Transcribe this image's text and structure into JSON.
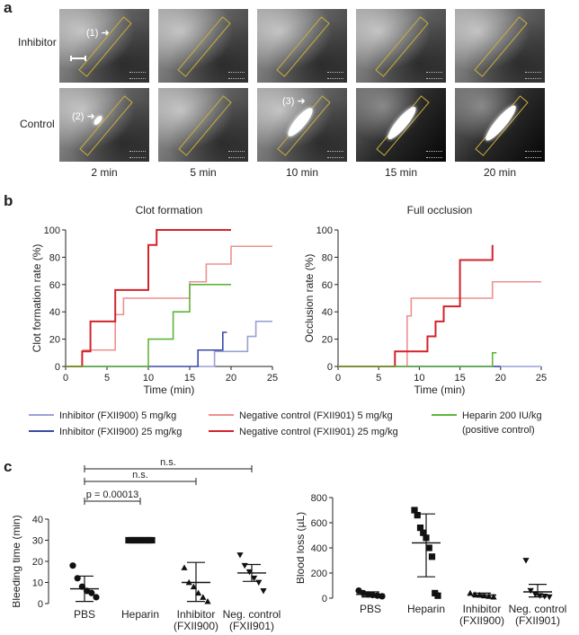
{
  "panel_a": {
    "letter": "a",
    "rows": [
      "Inhibitor",
      "Control"
    ],
    "times": [
      "2 min",
      "5 min",
      "10 min",
      "15 min",
      "20 min"
    ],
    "markers": [
      "(1)",
      "(2)",
      "(3)"
    ]
  },
  "panel_b": {
    "letter": "b"
  },
  "panel_c": {
    "letter": "c"
  },
  "colors": {
    "inhibitor_5": "#9aa0d6",
    "inhibitor_25": "#3a4aa6",
    "negctrl_5": "#ee8f8f",
    "negctrl_25": "#d3232b",
    "heparin": "#5fb43c"
  },
  "legend": [
    {
      "label": "Inhibitor (FXII900) 5 mg/kg",
      "color": "#9aa0d6"
    },
    {
      "label": "Inhibitor (FXII900) 25 mg/kg",
      "color": "#3a4aa6"
    },
    {
      "label": "Negative control (FXII901) 5 mg/kg",
      "color": "#ee8f8f"
    },
    {
      "label": "Negative control (FXII901) 25 mg/kg",
      "color": "#d3232b"
    },
    {
      "label": "Heparin 200 IU/kg (positive control)",
      "color": "#5fb43c"
    }
  ],
  "chart_data": [
    {
      "type": "line",
      "step": true,
      "title": "Clot formation",
      "xlabel": "Time (min)",
      "ylabel": "Clot formation rate (%)",
      "xlim": [
        0,
        25
      ],
      "ylim": [
        0,
        100
      ],
      "xticks": [
        0,
        5,
        10,
        15,
        20,
        25
      ],
      "yticks": [
        0,
        20,
        40,
        60,
        80,
        100
      ],
      "series": [
        {
          "name": "Inhibitor (FXII900) 5 mg/kg",
          "color": "#9aa0d6",
          "x": [
            16,
            18,
            19,
            20,
            22,
            23,
            25
          ],
          "y": [
            0,
            11,
            11,
            11,
            22,
            33,
            33
          ]
        },
        {
          "name": "Inhibitor (FXII900) 25 mg/kg",
          "color": "#3a4aa6",
          "x": [
            0,
            15,
            16,
            18,
            19,
            19.5
          ],
          "y": [
            0,
            0,
            12,
            12,
            25,
            25
          ]
        },
        {
          "name": "Negative control (FXII901) 5 mg/kg",
          "color": "#ee8f8f",
          "x": [
            2,
            3,
            6,
            7,
            14,
            15,
            17,
            20,
            25
          ],
          "y": [
            12,
            12,
            38,
            50,
            50,
            62,
            75,
            88,
            88
          ]
        },
        {
          "name": "Negative control (FXII901) 25 mg/kg",
          "color": "#d3232b",
          "x": [
            0,
            2,
            3,
            6,
            10,
            11,
            20
          ],
          "y": [
            0,
            11,
            33,
            56,
            89,
            100,
            100
          ]
        },
        {
          "name": "Heparin 200 IU/kg (positive control)",
          "color": "#5fb43c",
          "x": [
            0,
            10,
            13,
            15,
            20
          ],
          "y": [
            0,
            20,
            40,
            60,
            60
          ]
        }
      ]
    },
    {
      "type": "line",
      "step": true,
      "title": "Full occlusion",
      "xlabel": "Time (min)",
      "ylabel": "Occlusion rate (%)",
      "xlim": [
        0,
        25
      ],
      "ylim": [
        0,
        100
      ],
      "xticks": [
        0,
        5,
        10,
        15,
        20,
        25
      ],
      "yticks": [
        0,
        20,
        40,
        60,
        80,
        100
      ],
      "series": [
        {
          "name": "Inhibitor (FXII900) 5 mg/kg",
          "color": "#9aa0d6",
          "x": [
            0,
            25
          ],
          "y": [
            0,
            0
          ]
        },
        {
          "name": "Inhibitor (FXII900) 25 mg/kg",
          "color": "#3a4aa6",
          "x": [
            0,
            20
          ],
          "y": [
            0,
            0
          ]
        },
        {
          "name": "Negative control (FXII901) 5 mg/kg",
          "color": "#ee8f8f",
          "x": [
            0,
            8.5,
            9,
            18,
            19,
            25
          ],
          "y": [
            0,
            37,
            50,
            50,
            62,
            62
          ]
        },
        {
          "name": "Negative control (FXII901) 25 mg/kg",
          "color": "#d3232b",
          "x": [
            0,
            7,
            10,
            11,
            12,
            13,
            15,
            18,
            19
          ],
          "y": [
            0,
            11,
            11,
            22,
            33,
            44,
            78,
            78,
            89
          ]
        },
        {
          "name": "Heparin 200 IU/kg (positive control)",
          "color": "#5fb43c",
          "x": [
            0,
            19,
            19.5
          ],
          "y": [
            0,
            10,
            10
          ]
        }
      ]
    },
    {
      "type": "scatter",
      "ylabel": "Bleeding time (min)",
      "ylim": [
        0,
        40
      ],
      "yticks": [
        0,
        10,
        20,
        30,
        40
      ],
      "categories": [
        "PBS",
        "Heparin",
        "Inhibitor\n(FXII900)",
        "Neg. control\n(FXII901)"
      ],
      "groups": [
        {
          "marker": "circle",
          "points": [
            18,
            12,
            8,
            6,
            5,
            3
          ],
          "mean": 7,
          "sd": [
            1,
            13
          ]
        },
        {
          "marker": "square",
          "points": [
            30,
            30,
            30,
            30,
            30,
            30,
            30,
            30,
            30
          ],
          "mean": 30,
          "sd": [
            29.5,
            30.5
          ]
        },
        {
          "marker": "triangle",
          "points": [
            17,
            10,
            8,
            5,
            3,
            1
          ],
          "mean": 10,
          "sd": [
            1,
            19.5
          ]
        },
        {
          "marker": "tri-down",
          "points": [
            23,
            18,
            15,
            12,
            10,
            6
          ],
          "mean": 14.5,
          "sd": [
            10.5,
            18.5
          ]
        }
      ],
      "annotations": [
        {
          "text": "n.s.",
          "from": 0,
          "to": 3,
          "level": 37
        },
        {
          "text": "n.s.",
          "from": 0,
          "to": 2,
          "level": 34
        },
        {
          "text": "p = 0.00013",
          "from": 0,
          "to": 1,
          "level": 31
        }
      ]
    },
    {
      "type": "scatter",
      "ylabel": "Blood loss (µL)",
      "ylim": [
        0,
        800
      ],
      "yticks": [
        0,
        200,
        400,
        600,
        800
      ],
      "categories": [
        "PBS",
        "Heparin",
        "Inhibitor\n(FXII900)",
        "Neg. control\n(FXII901)"
      ],
      "groups": [
        {
          "marker": "circle",
          "points": [
            60,
            40,
            30,
            25,
            20,
            15
          ],
          "mean": 30,
          "sd": [
            10,
            50
          ]
        },
        {
          "marker": "square",
          "points": [
            700,
            660,
            560,
            520,
            480,
            400,
            330,
            40,
            20
          ],
          "mean": 440,
          "sd": [
            170,
            670
          ]
        },
        {
          "marker": "triangle",
          "points": [
            40,
            30,
            25,
            20,
            15,
            10
          ],
          "mean": 25,
          "sd": [
            10,
            40
          ]
        },
        {
          "marker": "tri-down",
          "points": [
            300,
            60,
            30,
            20,
            15,
            10
          ],
          "mean": 50,
          "sd": [
            10,
            110
          ]
        }
      ]
    }
  ]
}
